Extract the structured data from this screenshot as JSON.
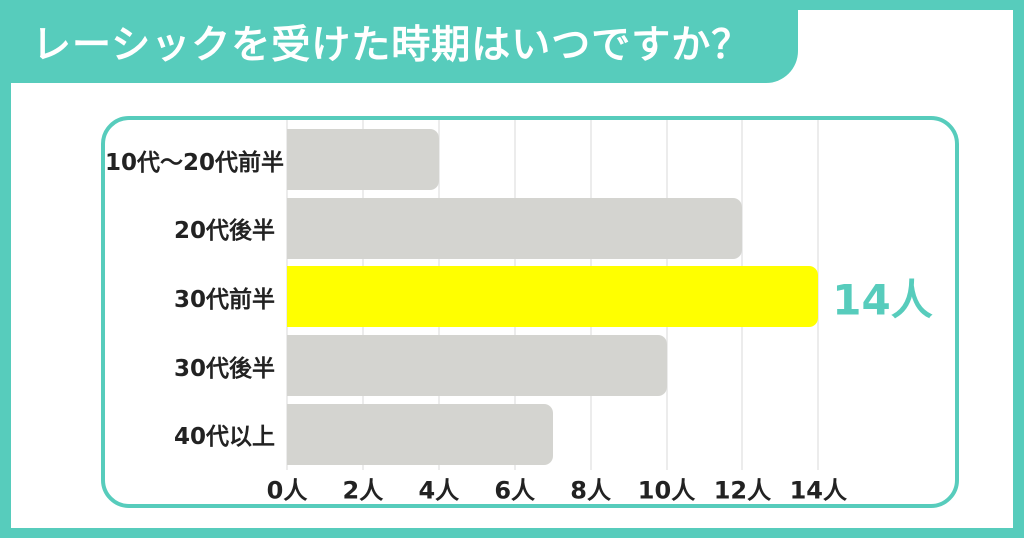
{
  "title": "レーシックを受けた時期はいつですか？",
  "colors": {
    "teal": "#57CCBC",
    "bar_gray": "#D4D4D0",
    "highlight_yellow": "#FFFF00",
    "gridline": "#ECECEC",
    "text": "#222222",
    "title_text": "#FFFFFF"
  },
  "chart_data": {
    "type": "bar",
    "orientation": "horizontal",
    "title": "レーシックを受けた時期はいつですか？",
    "categories": [
      "10代〜20代前半",
      "20代後半",
      "30代前半",
      "30代後半",
      "40代以上"
    ],
    "values": [
      4,
      12,
      14,
      10,
      7
    ],
    "unit_suffix": "人",
    "x_ticks": [
      "0人",
      "2人",
      "4人",
      "6人",
      "8人",
      "10人",
      "12人",
      "14人"
    ],
    "x_tick_values": [
      0,
      2,
      4,
      6,
      8,
      10,
      12,
      14
    ],
    "xlim": [
      0,
      14
    ],
    "grid": true,
    "legend": false,
    "highlight": {
      "index": 2,
      "label": "14人"
    }
  }
}
